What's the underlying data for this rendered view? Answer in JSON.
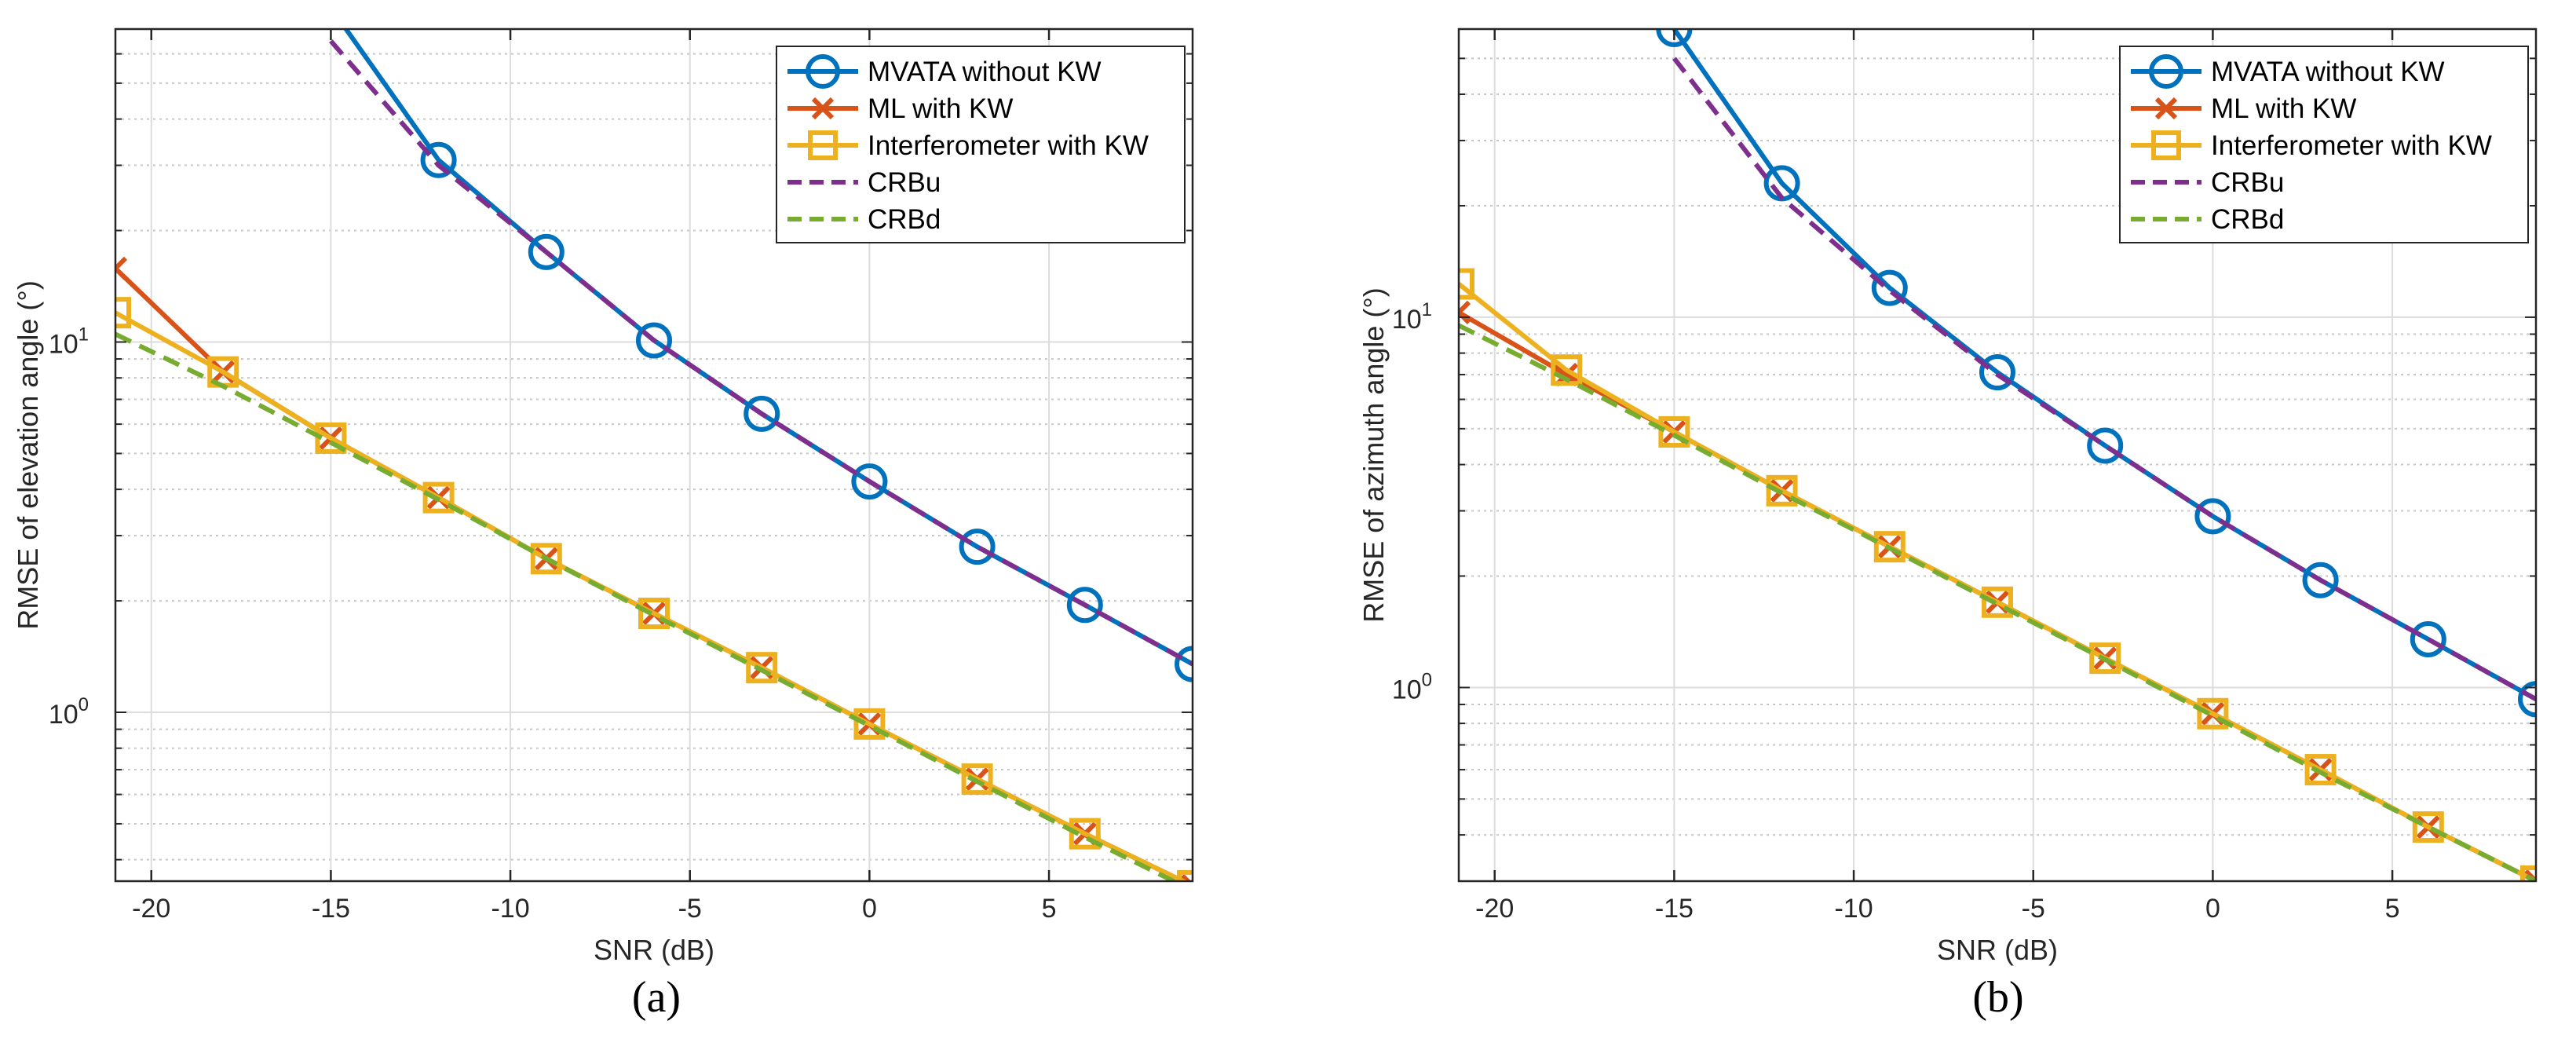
{
  "chart_data": [
    {
      "type": "line",
      "panel_label": "(a)",
      "xlabel": "SNR (dB)",
      "ylabel": "RMSE of elevation angle (°)",
      "yscale": "log",
      "xlim": [
        -21,
        9
      ],
      "ylim": [
        0.35,
        70
      ],
      "xticks": [
        -20,
        -15,
        -10,
        -5,
        0,
        5
      ],
      "yticks": [
        {
          "value": 1,
          "base": "10",
          "exp": "0"
        },
        {
          "value": 10,
          "base": "10",
          "exp": "1"
        }
      ],
      "grid": true,
      "legend_position": "top-right",
      "series": [
        {
          "name": "MVATA without KW",
          "color": "#0072BD",
          "style": "solid",
          "marker": "circle",
          "x": [
            -15,
            -12,
            -9,
            -6,
            -3,
            0,
            3,
            6,
            9
          ],
          "y": [
            80,
            31,
            17.5,
            10.1,
            6.4,
            4.2,
            2.8,
            1.95,
            1.35
          ]
        },
        {
          "name": "ML with KW",
          "color": "#D95319",
          "style": "solid",
          "marker": "x",
          "x": [
            -21,
            -18,
            -15,
            -12,
            -9,
            -6,
            -3,
            0,
            3,
            6,
            9
          ],
          "y": [
            15.8,
            8.3,
            5.5,
            3.8,
            2.6,
            1.85,
            1.32,
            0.93,
            0.66,
            0.47,
            0.34
          ]
        },
        {
          "name": "Interferometer with KW",
          "color": "#EDB120",
          "style": "solid",
          "marker": "square",
          "x": [
            -21,
            -18,
            -15,
            -12,
            -9,
            -6,
            -3,
            0,
            3,
            6,
            9
          ],
          "y": [
            12.0,
            8.3,
            5.5,
            3.8,
            2.6,
            1.85,
            1.32,
            0.93,
            0.66,
            0.47,
            0.34
          ]
        },
        {
          "name": "CRBu",
          "color": "#7E2F8E",
          "style": "dashed",
          "marker": "none",
          "x": [
            -15,
            -12,
            -9,
            -6,
            -3,
            0,
            3,
            6,
            9
          ],
          "y": [
            65,
            30,
            17.5,
            10.1,
            6.4,
            4.2,
            2.8,
            1.95,
            1.35
          ]
        },
        {
          "name": "CRBd",
          "color": "#77AC30",
          "style": "dashed",
          "marker": "none",
          "x": [
            -21,
            -18,
            -15,
            -12,
            -9,
            -6,
            -3,
            0,
            3,
            6,
            9
          ],
          "y": [
            10.5,
            7.6,
            5.35,
            3.75,
            2.6,
            1.83,
            1.3,
            0.92,
            0.65,
            0.46,
            0.33
          ]
        }
      ]
    },
    {
      "type": "line",
      "panel_label": "(b)",
      "xlabel": "SNR (dB)",
      "ylabel": "RMSE of azimuth angle (°)",
      "yscale": "log",
      "xlim": [
        -21,
        9
      ],
      "ylim": [
        0.3,
        60
      ],
      "xticks": [
        -20,
        -15,
        -10,
        -5,
        0,
        5
      ],
      "yticks": [
        {
          "value": 1,
          "base": "10",
          "exp": "0"
        },
        {
          "value": 10,
          "base": "10",
          "exp": "1"
        }
      ],
      "grid": true,
      "legend_position": "top-right",
      "series": [
        {
          "name": "MVATA without KW",
          "color": "#0072BD",
          "style": "solid",
          "marker": "circle",
          "x": [
            -15,
            -12,
            -9,
            -6,
            -3,
            0,
            3,
            6,
            9
          ],
          "y": [
            60,
            23,
            12,
            7.1,
            4.5,
            2.9,
            1.95,
            1.35,
            0.93
          ]
        },
        {
          "name": "ML with KW",
          "color": "#D95319",
          "style": "solid",
          "marker": "x",
          "x": [
            -21,
            -18,
            -15,
            -12,
            -9,
            -6,
            -3,
            0,
            3,
            6,
            9
          ],
          "y": [
            10.3,
            7.0,
            4.9,
            3.4,
            2.4,
            1.7,
            1.2,
            0.85,
            0.6,
            0.42,
            0.3
          ]
        },
        {
          "name": "Interferometer with KW",
          "color": "#EDB120",
          "style": "solid",
          "marker": "square",
          "x": [
            -21,
            -18,
            -15,
            -12,
            -9,
            -6,
            -3,
            0,
            3,
            6,
            9
          ],
          "y": [
            12.3,
            7.2,
            4.9,
            3.4,
            2.4,
            1.7,
            1.2,
            0.85,
            0.6,
            0.42,
            0.3
          ]
        },
        {
          "name": "CRBu",
          "color": "#7E2F8E",
          "style": "dashed",
          "marker": "none",
          "x": [
            -15,
            -12,
            -9,
            -6,
            -3,
            0,
            3,
            6,
            9
          ],
          "y": [
            50,
            21,
            11.8,
            7.0,
            4.5,
            2.9,
            1.95,
            1.35,
            0.93
          ]
        },
        {
          "name": "CRBd",
          "color": "#77AC30",
          "style": "dashed",
          "marker": "none",
          "x": [
            -21,
            -18,
            -15,
            -12,
            -9,
            -6,
            -3,
            0,
            3,
            6,
            9
          ],
          "y": [
            9.5,
            6.8,
            4.8,
            3.35,
            2.38,
            1.68,
            1.19,
            0.84,
            0.59,
            0.42,
            0.3
          ]
        }
      ]
    }
  ]
}
